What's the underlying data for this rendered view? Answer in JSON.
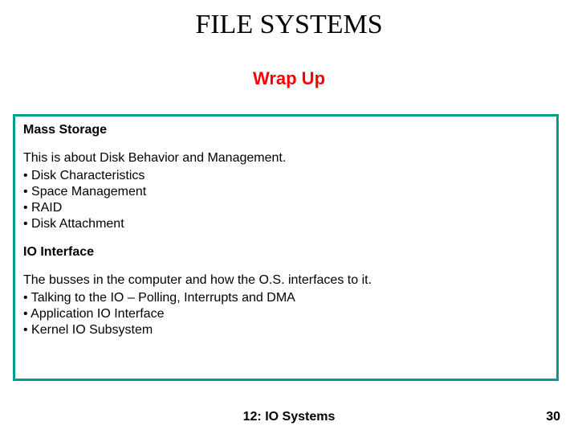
{
  "title": "FILE SYSTEMS",
  "subtitle": "Wrap Up",
  "colors": {
    "title_color": "#000000",
    "subtitle_color": "#ff0000",
    "box_border_color": "#009a8e",
    "background": "#ffffff",
    "text_color": "#000000"
  },
  "typography": {
    "title_font": "Times New Roman",
    "title_fontsize": 34,
    "subtitle_font": "Arial",
    "subtitle_fontsize": 22,
    "body_font": "Arial",
    "body_fontsize": 16
  },
  "section1": {
    "heading": "Mass Storage",
    "intro": "This is about Disk Behavior and Management.",
    "bullets": {
      "b0": "• Disk Characteristics",
      "b1": "• Space Management",
      "b2": "• RAID",
      "b3": "• Disk Attachment"
    }
  },
  "section2": {
    "heading": "IO Interface",
    "intro": "The busses in the computer and how the O.S. interfaces to it.",
    "bullets": {
      "b0": "• Talking to the IO – Polling, Interrupts and DMA",
      "b1": "• Application IO Interface",
      "b2": "• Kernel IO Subsystem"
    }
  },
  "footer": {
    "center": "12: IO Systems",
    "page_number": "30"
  },
  "layout": {
    "slide_width": 720,
    "slide_height": 540,
    "box_border_width": 3
  }
}
